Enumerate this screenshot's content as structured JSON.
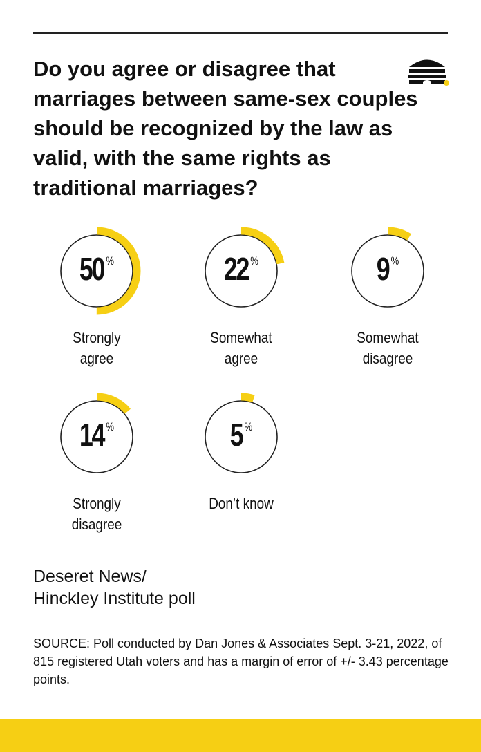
{
  "question": "Do you agree or disagree that marriages between same-sex couples should be recognized by the law as valid, with the same rights as traditional marriages?",
  "percent_sign": "%",
  "colors": {
    "accent": "#f6cf14",
    "text": "#111111",
    "ring": "#222222"
  },
  "logo": {
    "icon": "beehive-icon"
  },
  "chart_data": {
    "type": "donut",
    "unit": "%",
    "categories": [
      "Strongly agree",
      "Somewhat agree",
      "Somewhat disagree",
      "Strongly disagree",
      "Don’t know"
    ],
    "values": [
      50,
      22,
      9,
      14,
      5
    ],
    "items": [
      {
        "value": "50",
        "label_lines": [
          "Strongly",
          "agree"
        ]
      },
      {
        "value": "22",
        "label_lines": [
          "Somewhat",
          "agree"
        ]
      },
      {
        "value": "9",
        "label_lines": [
          "Somewhat",
          "disagree"
        ]
      },
      {
        "value": "14",
        "label_lines": [
          "Strongly",
          "disagree"
        ]
      },
      {
        "value": "5",
        "label_lines": [
          "Don’t know"
        ]
      }
    ]
  },
  "source": {
    "title_lines": [
      "Deseret News/",
      "Hinckley Institute poll"
    ],
    "note": "SOURCE: Poll conducted by Dan Jones & Associates Sept. 3-21, 2022, of 815 registered Utah voters and has a margin of error of +/- 3.43 percentage points."
  }
}
